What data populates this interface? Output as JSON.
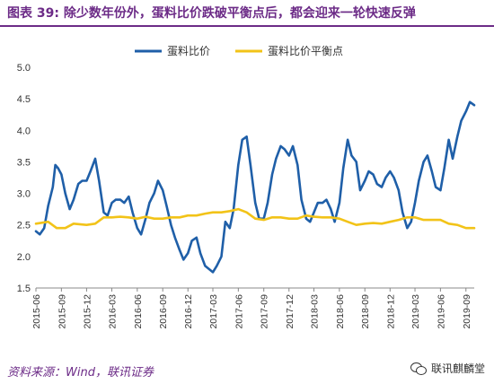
{
  "header": {
    "figure_label": "图表 39:",
    "title": "除少数年份外，蛋料比价跌破平衡点后，都会迎来一轮快速反弹"
  },
  "colors": {
    "brand": "#6c2b87",
    "series_ratio": "#1f5fa8",
    "series_balance": "#f2c318",
    "axis": "#888888",
    "grid": "#d9d9d9"
  },
  "chart_data": {
    "type": "line",
    "ylim": [
      1.5,
      5.0
    ],
    "yticks": [
      "1.5",
      "2.0",
      "2.5",
      "3.0",
      "3.5",
      "4.0",
      "4.5",
      "5.0"
    ],
    "xlim": [
      "2015-06",
      "2019-10"
    ],
    "xticks": [
      "2015-06",
      "2015-09",
      "2015-12",
      "2016-03",
      "2016-06",
      "2016-09",
      "2016-12",
      "2017-03",
      "2017-06",
      "2017-09",
      "2017-12",
      "2018-03",
      "2018-06",
      "2018-09",
      "2018-12",
      "2019-03",
      "2019-06",
      "2019-09"
    ],
    "legend_position": "top-center",
    "grid": false,
    "series": [
      {
        "name": "蛋料比价",
        "color": "#1f5fa8",
        "points": [
          [
            "2015-06-01",
            2.4
          ],
          [
            "2015-06-15",
            2.35
          ],
          [
            "2015-07-01",
            2.45
          ],
          [
            "2015-07-15",
            2.8
          ],
          [
            "2015-08-01",
            3.1
          ],
          [
            "2015-08-10",
            3.45
          ],
          [
            "2015-08-20",
            3.4
          ],
          [
            "2015-09-01",
            3.3
          ],
          [
            "2015-09-15",
            3.0
          ],
          [
            "2015-10-01",
            2.75
          ],
          [
            "2015-10-15",
            2.9
          ],
          [
            "2015-11-01",
            3.15
          ],
          [
            "2015-11-15",
            3.2
          ],
          [
            "2015-12-01",
            3.2
          ],
          [
            "2015-12-15",
            3.35
          ],
          [
            "2016-01-01",
            3.55
          ],
          [
            "2016-01-15",
            3.2
          ],
          [
            "2016-02-01",
            2.7
          ],
          [
            "2016-02-15",
            2.65
          ],
          [
            "2016-03-01",
            2.85
          ],
          [
            "2016-03-15",
            2.9
          ],
          [
            "2016-04-01",
            2.9
          ],
          [
            "2016-04-15",
            2.85
          ],
          [
            "2016-05-01",
            2.95
          ],
          [
            "2016-05-15",
            2.7
          ],
          [
            "2016-06-01",
            2.45
          ],
          [
            "2016-06-15",
            2.35
          ],
          [
            "2016-07-01",
            2.6
          ],
          [
            "2016-07-15",
            2.85
          ],
          [
            "2016-08-01",
            3.0
          ],
          [
            "2016-08-15",
            3.2
          ],
          [
            "2016-09-01",
            3.05
          ],
          [
            "2016-09-15",
            2.8
          ],
          [
            "2016-10-01",
            2.5
          ],
          [
            "2016-10-15",
            2.3
          ],
          [
            "2016-11-01",
            2.1
          ],
          [
            "2016-11-15",
            1.95
          ],
          [
            "2016-12-01",
            2.05
          ],
          [
            "2016-12-15",
            2.25
          ],
          [
            "2017-01-01",
            2.3
          ],
          [
            "2017-01-15",
            2.05
          ],
          [
            "2017-02-01",
            1.85
          ],
          [
            "2017-02-15",
            1.8
          ],
          [
            "2017-03-01",
            1.75
          ],
          [
            "2017-03-15",
            1.85
          ],
          [
            "2017-04-01",
            2.0
          ],
          [
            "2017-04-15",
            2.55
          ],
          [
            "2017-05-01",
            2.45
          ],
          [
            "2017-05-15",
            2.75
          ],
          [
            "2017-06-01",
            3.45
          ],
          [
            "2017-06-15",
            3.85
          ],
          [
            "2017-07-01",
            3.9
          ],
          [
            "2017-07-15",
            3.45
          ],
          [
            "2017-08-01",
            2.85
          ],
          [
            "2017-08-15",
            2.6
          ],
          [
            "2017-09-01",
            2.6
          ],
          [
            "2017-09-15",
            2.85
          ],
          [
            "2017-10-01",
            3.3
          ],
          [
            "2017-10-15",
            3.55
          ],
          [
            "2017-11-01",
            3.75
          ],
          [
            "2017-11-15",
            3.7
          ],
          [
            "2017-12-01",
            3.6
          ],
          [
            "2017-12-15",
            3.75
          ],
          [
            "2018-01-01",
            3.45
          ],
          [
            "2018-01-15",
            2.9
          ],
          [
            "2018-02-01",
            2.6
          ],
          [
            "2018-02-15",
            2.55
          ],
          [
            "2018-03-01",
            2.7
          ],
          [
            "2018-03-15",
            2.85
          ],
          [
            "2018-04-01",
            2.85
          ],
          [
            "2018-04-15",
            2.9
          ],
          [
            "2018-05-01",
            2.75
          ],
          [
            "2018-05-15",
            2.55
          ],
          [
            "2018-06-01",
            2.85
          ],
          [
            "2018-06-15",
            3.4
          ],
          [
            "2018-07-01",
            3.85
          ],
          [
            "2018-07-15",
            3.6
          ],
          [
            "2018-08-01",
            3.5
          ],
          [
            "2018-08-15",
            3.05
          ],
          [
            "2018-09-01",
            3.2
          ],
          [
            "2018-09-15",
            3.35
          ],
          [
            "2018-10-01",
            3.3
          ],
          [
            "2018-10-15",
            3.15
          ],
          [
            "2018-11-01",
            3.1
          ],
          [
            "2018-11-15",
            3.25
          ],
          [
            "2018-12-01",
            3.35
          ],
          [
            "2018-12-15",
            3.25
          ],
          [
            "2019-01-01",
            3.05
          ],
          [
            "2019-01-15",
            2.7
          ],
          [
            "2019-02-01",
            2.45
          ],
          [
            "2019-02-15",
            2.55
          ],
          [
            "2019-03-01",
            2.85
          ],
          [
            "2019-03-15",
            3.2
          ],
          [
            "2019-04-01",
            3.5
          ],
          [
            "2019-04-15",
            3.6
          ],
          [
            "2019-05-01",
            3.35
          ],
          [
            "2019-05-15",
            3.1
          ],
          [
            "2019-06-01",
            3.05
          ],
          [
            "2019-06-15",
            3.4
          ],
          [
            "2019-07-01",
            3.85
          ],
          [
            "2019-07-15",
            3.55
          ],
          [
            "2019-08-01",
            3.9
          ],
          [
            "2019-08-15",
            4.15
          ],
          [
            "2019-09-01",
            4.3
          ],
          [
            "2019-09-15",
            4.45
          ],
          [
            "2019-10-01",
            4.4
          ]
        ]
      },
      {
        "name": "蛋料比价平衡点",
        "color": "#f2c318",
        "points": [
          [
            "2015-06-01",
            2.52
          ],
          [
            "2015-07-15",
            2.55
          ],
          [
            "2015-08-15",
            2.45
          ],
          [
            "2015-09-15",
            2.45
          ],
          [
            "2015-10-15",
            2.52
          ],
          [
            "2015-12-01",
            2.5
          ],
          [
            "2016-01-01",
            2.52
          ],
          [
            "2016-02-01",
            2.62
          ],
          [
            "2016-03-01",
            2.62
          ],
          [
            "2016-04-01",
            2.63
          ],
          [
            "2016-05-01",
            2.62
          ],
          [
            "2016-06-01",
            2.6
          ],
          [
            "2016-07-01",
            2.63
          ],
          [
            "2016-08-01",
            2.6
          ],
          [
            "2016-09-01",
            2.6
          ],
          [
            "2016-10-01",
            2.62
          ],
          [
            "2016-11-01",
            2.62
          ],
          [
            "2016-12-01",
            2.65
          ],
          [
            "2017-01-01",
            2.65
          ],
          [
            "2017-02-01",
            2.68
          ],
          [
            "2017-03-01",
            2.7
          ],
          [
            "2017-04-01",
            2.7
          ],
          [
            "2017-05-01",
            2.72
          ],
          [
            "2017-06-01",
            2.75
          ],
          [
            "2017-07-01",
            2.7
          ],
          [
            "2017-08-01",
            2.6
          ],
          [
            "2017-09-01",
            2.58
          ],
          [
            "2017-10-01",
            2.62
          ],
          [
            "2017-11-01",
            2.62
          ],
          [
            "2017-12-01",
            2.6
          ],
          [
            "2018-01-01",
            2.6
          ],
          [
            "2018-02-01",
            2.65
          ],
          [
            "2018-03-01",
            2.63
          ],
          [
            "2018-04-01",
            2.62
          ],
          [
            "2018-05-01",
            2.62
          ],
          [
            "2018-06-01",
            2.6
          ],
          [
            "2018-07-01",
            2.55
          ],
          [
            "2018-08-01",
            2.5
          ],
          [
            "2018-09-01",
            2.52
          ],
          [
            "2018-10-01",
            2.53
          ],
          [
            "2018-11-01",
            2.52
          ],
          [
            "2018-12-01",
            2.55
          ],
          [
            "2019-01-01",
            2.58
          ],
          [
            "2019-02-01",
            2.62
          ],
          [
            "2019-03-01",
            2.62
          ],
          [
            "2019-04-01",
            2.58
          ],
          [
            "2019-05-01",
            2.58
          ],
          [
            "2019-06-01",
            2.58
          ],
          [
            "2019-07-01",
            2.52
          ],
          [
            "2019-08-01",
            2.5
          ],
          [
            "2019-09-01",
            2.45
          ],
          [
            "2019-10-01",
            2.45
          ]
        ]
      }
    ]
  },
  "footer": {
    "source": "资料来源：Wind，联讯证券",
    "watermark": "联讯麒麟堂",
    "watermark_icon": "wechat-icon"
  }
}
